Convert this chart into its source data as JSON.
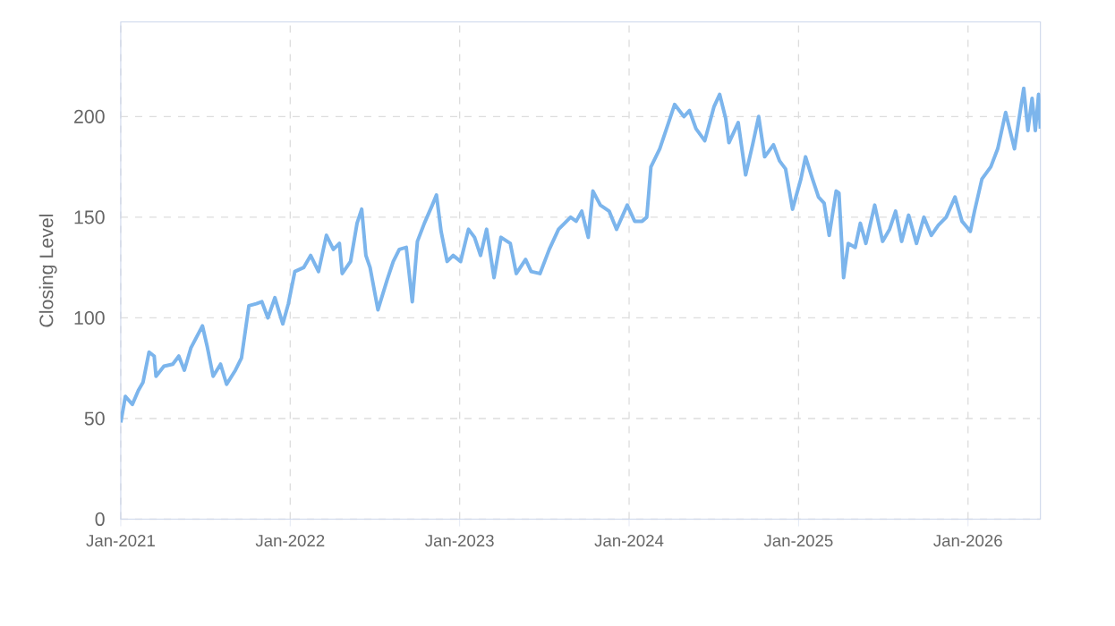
{
  "chart_data": {
    "type": "line",
    "ylabel": "Closing Level",
    "color": "#7cb5ec",
    "grid": true,
    "xlim": [
      "2021-01-01",
      "2026-06-06"
    ],
    "ylim": [
      0,
      247
    ],
    "xticks": [
      {
        "value": "2021-01-01",
        "label": "Jan-2021"
      },
      {
        "value": "2022-01-01",
        "label": "Jan-2022"
      },
      {
        "value": "2023-01-01",
        "label": "Jan-2023"
      },
      {
        "value": "2024-01-01",
        "label": "Jan-2024"
      },
      {
        "value": "2025-01-01",
        "label": "Jan-2025"
      },
      {
        "value": "2026-01-01",
        "label": "Jan-2026"
      }
    ],
    "yticks": [
      0,
      50,
      100,
      150,
      200
    ],
    "x": [
      "2021-01-01",
      "2021-01-11",
      "2021-01-26",
      "2021-02-08",
      "2021-02-18",
      "2021-03-03",
      "2021-03-14",
      "2021-03-18",
      "2021-04-04",
      "2021-04-23",
      "2021-05-06",
      "2021-05-18",
      "2021-06-01",
      "2021-06-26",
      "2021-07-06",
      "2021-07-19",
      "2021-08-04",
      "2021-08-17",
      "2021-09-05",
      "2021-09-18",
      "2021-10-04",
      "2021-10-20",
      "2021-11-01",
      "2021-11-14",
      "2021-11-29",
      "2021-12-16",
      "2021-12-28",
      "2022-01-11",
      "2022-01-30",
      "2022-02-14",
      "2022-03-03",
      "2022-03-20",
      "2022-04-04",
      "2022-04-17",
      "2022-04-23",
      "2022-05-11",
      "2022-05-25",
      "2022-06-04",
      "2022-06-13",
      "2022-06-22",
      "2022-07-09",
      "2022-07-29",
      "2022-08-11",
      "2022-08-24",
      "2022-09-08",
      "2022-09-21",
      "2022-10-02",
      "2022-10-17",
      "2022-11-03",
      "2022-11-12",
      "2022-11-22",
      "2022-12-05",
      "2022-12-18",
      "2023-01-03",
      "2023-01-20",
      "2023-02-02",
      "2023-02-15",
      "2023-02-28",
      "2023-03-16",
      "2023-03-31",
      "2023-04-20",
      "2023-05-03",
      "2023-05-23",
      "2023-06-04",
      "2023-06-23",
      "2023-07-13",
      "2023-08-02",
      "2023-08-28",
      "2023-09-09",
      "2023-09-21",
      "2023-10-05",
      "2023-10-15",
      "2023-10-31",
      "2023-11-19",
      "2023-12-05",
      "2023-12-28",
      "2024-01-13",
      "2024-01-29",
      "2024-02-08",
      "2024-02-17",
      "2024-03-08",
      "2024-03-27",
      "2024-04-09",
      "2024-04-29",
      "2024-05-11",
      "2024-05-25",
      "2024-06-13",
      "2024-07-03",
      "2024-07-15",
      "2024-07-28",
      "2024-08-04",
      "2024-08-24",
      "2024-09-09",
      "2024-09-24",
      "2024-10-07",
      "2024-10-20",
      "2024-11-08",
      "2024-11-21",
      "2024-12-04",
      "2024-12-19",
      "2025-01-06",
      "2025-01-16",
      "2025-01-31",
      "2025-02-13",
      "2025-02-25",
      "2025-03-08",
      "2025-03-23",
      "2025-03-29",
      "2025-04-08",
      "2025-04-18",
      "2025-05-03",
      "2025-05-14",
      "2025-05-26",
      "2025-06-14",
      "2025-07-01",
      "2025-07-16",
      "2025-07-29",
      "2025-08-11",
      "2025-08-26",
      "2025-09-12",
      "2025-09-28",
      "2025-10-14",
      "2025-10-29",
      "2025-11-15",
      "2025-12-04",
      "2025-12-19",
      "2026-01-06",
      "2026-01-15",
      "2026-01-31",
      "2026-02-19",
      "2026-03-06",
      "2026-03-23",
      "2026-04-11",
      "2026-05-01",
      "2026-05-10",
      "2026-05-19",
      "2026-05-26",
      "2026-06-02",
      "2026-06-06"
    ],
    "values": [
      48,
      61,
      57,
      64,
      68,
      83,
      81,
      71,
      76,
      77,
      81,
      74,
      85,
      96,
      86,
      71,
      77,
      67,
      74,
      80,
      106,
      107,
      108,
      100,
      110,
      97,
      107,
      123,
      125,
      131,
      123,
      141,
      134,
      137,
      122,
      128,
      147,
      154,
      131,
      125,
      104,
      119,
      128,
      134,
      135,
      108,
      138,
      147,
      156,
      161,
      143,
      128,
      131,
      128,
      144,
      140,
      131,
      144,
      120,
      140,
      137,
      122,
      129,
      123,
      122,
      134,
      144,
      150,
      148,
      153,
      140,
      163,
      156,
      153,
      144,
      156,
      148,
      148,
      150,
      175,
      184,
      197,
      206,
      200,
      203,
      194,
      188,
      205,
      211,
      199,
      187,
      197,
      171,
      186,
      200,
      180,
      186,
      178,
      174,
      154,
      169,
      180,
      169,
      160,
      157,
      141,
      163,
      162,
      120,
      137,
      135,
      147,
      137,
      156,
      138,
      144,
      153,
      138,
      151,
      137,
      150,
      141,
      146,
      150,
      160,
      148,
      143,
      153,
      169,
      175,
      184,
      202,
      184,
      214,
      193,
      209,
      193,
      211,
      194
    ]
  }
}
